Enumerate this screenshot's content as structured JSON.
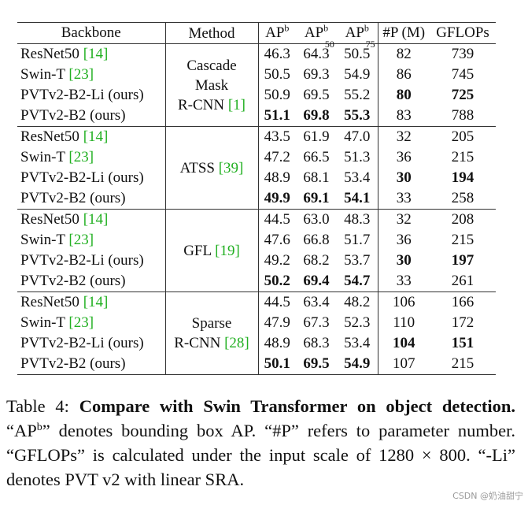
{
  "table": {
    "columns": [
      {
        "text": "Backbone"
      },
      {
        "text": "Method"
      },
      {
        "text": "AP",
        "sup": "b"
      },
      {
        "text": "AP",
        "sup": "b",
        "sub": "50"
      },
      {
        "text": "AP",
        "sup": "b",
        "sub": "75"
      },
      {
        "text": "#P (M)"
      },
      {
        "text": "GFLOPs"
      }
    ],
    "groups": [
      {
        "method": [
          "Cascade",
          "Mask",
          "R-CNN"
        ],
        "method_ref": "[1]",
        "rows": [
          {
            "backbone": "ResNet50",
            "ref": "[14]",
            "values": [
              "46.3",
              "64.3",
              "50.5",
              "82",
              "739"
            ],
            "bold": []
          },
          {
            "backbone": "Swin-T",
            "ref": "[23]",
            "values": [
              "50.5",
              "69.3",
              "54.9",
              "86",
              "745"
            ],
            "bold": []
          },
          {
            "backbone": "PVTv2-B2-Li (ours)",
            "values": [
              "50.9",
              "69.5",
              "55.2",
              "80",
              "725"
            ],
            "bold": [
              3,
              4
            ]
          },
          {
            "backbone": "PVTv2-B2 (ours)",
            "values": [
              "51.1",
              "69.8",
              "55.3",
              "83",
              "788"
            ],
            "bold": [
              0,
              1,
              2
            ]
          }
        ]
      },
      {
        "method": [
          "ATSS"
        ],
        "method_ref": "[39]",
        "rows": [
          {
            "backbone": "ResNet50",
            "ref": "[14]",
            "values": [
              "43.5",
              "61.9",
              "47.0",
              "32",
              "205"
            ],
            "bold": []
          },
          {
            "backbone": "Swin-T",
            "ref": "[23]",
            "values": [
              "47.2",
              "66.5",
              "51.3",
              "36",
              "215"
            ],
            "bold": []
          },
          {
            "backbone": "PVTv2-B2-Li (ours)",
            "values": [
              "48.9",
              "68.1",
              "53.4",
              "30",
              "194"
            ],
            "bold": [
              3,
              4
            ]
          },
          {
            "backbone": "PVTv2-B2 (ours)",
            "values": [
              "49.9",
              "69.1",
              "54.1",
              "33",
              "258"
            ],
            "bold": [
              0,
              1,
              2
            ]
          }
        ]
      },
      {
        "method": [
          "GFL"
        ],
        "method_ref": "[19]",
        "rows": [
          {
            "backbone": "ResNet50",
            "ref": "[14]",
            "values": [
              "44.5",
              "63.0",
              "48.3",
              "32",
              "208"
            ],
            "bold": []
          },
          {
            "backbone": "Swin-T",
            "ref": "[23]",
            "values": [
              "47.6",
              "66.8",
              "51.7",
              "36",
              "215"
            ],
            "bold": []
          },
          {
            "backbone": "PVTv2-B2-Li (ours)",
            "values": [
              "49.2",
              "68.2",
              "53.7",
              "30",
              "197"
            ],
            "bold": [
              3,
              4
            ]
          },
          {
            "backbone": "PVTv2-B2 (ours)",
            "values": [
              "50.2",
              "69.4",
              "54.7",
              "33",
              "261"
            ],
            "bold": [
              0,
              1,
              2
            ]
          }
        ]
      },
      {
        "method": [
          "Sparse",
          "R-CNN"
        ],
        "method_ref": "[28]",
        "rows": [
          {
            "backbone": "ResNet50",
            "ref": "[14]",
            "values": [
              "44.5",
              "63.4",
              "48.2",
              "106",
              "166"
            ],
            "bold": []
          },
          {
            "backbone": "Swin-T",
            "ref": "[23]",
            "values": [
              "47.9",
              "67.3",
              "52.3",
              "110",
              "172"
            ],
            "bold": []
          },
          {
            "backbone": "PVTv2-B2-Li (ours)",
            "values": [
              "48.9",
              "68.3",
              "53.4",
              "104",
              "151"
            ],
            "bold": [
              3,
              4
            ]
          },
          {
            "backbone": "PVTv2-B2 (ours)",
            "values": [
              "50.1",
              "69.5",
              "54.9",
              "107",
              "215"
            ],
            "bold": [
              0,
              1,
              2
            ]
          }
        ]
      }
    ]
  },
  "caption": {
    "label": "Table 4:",
    "bold": "Compare with Swin Transformer on object detection.",
    "parts": [
      "“AP",
      "b",
      "” denotes bounding box AP. “#P” refers to parameter number. “GFLOPs” is calculated under the input scale of 1280 × 800. “-Li” denotes PVT v2 with linear SRA."
    ]
  },
  "watermark": "CSDN @奶油甜宁"
}
